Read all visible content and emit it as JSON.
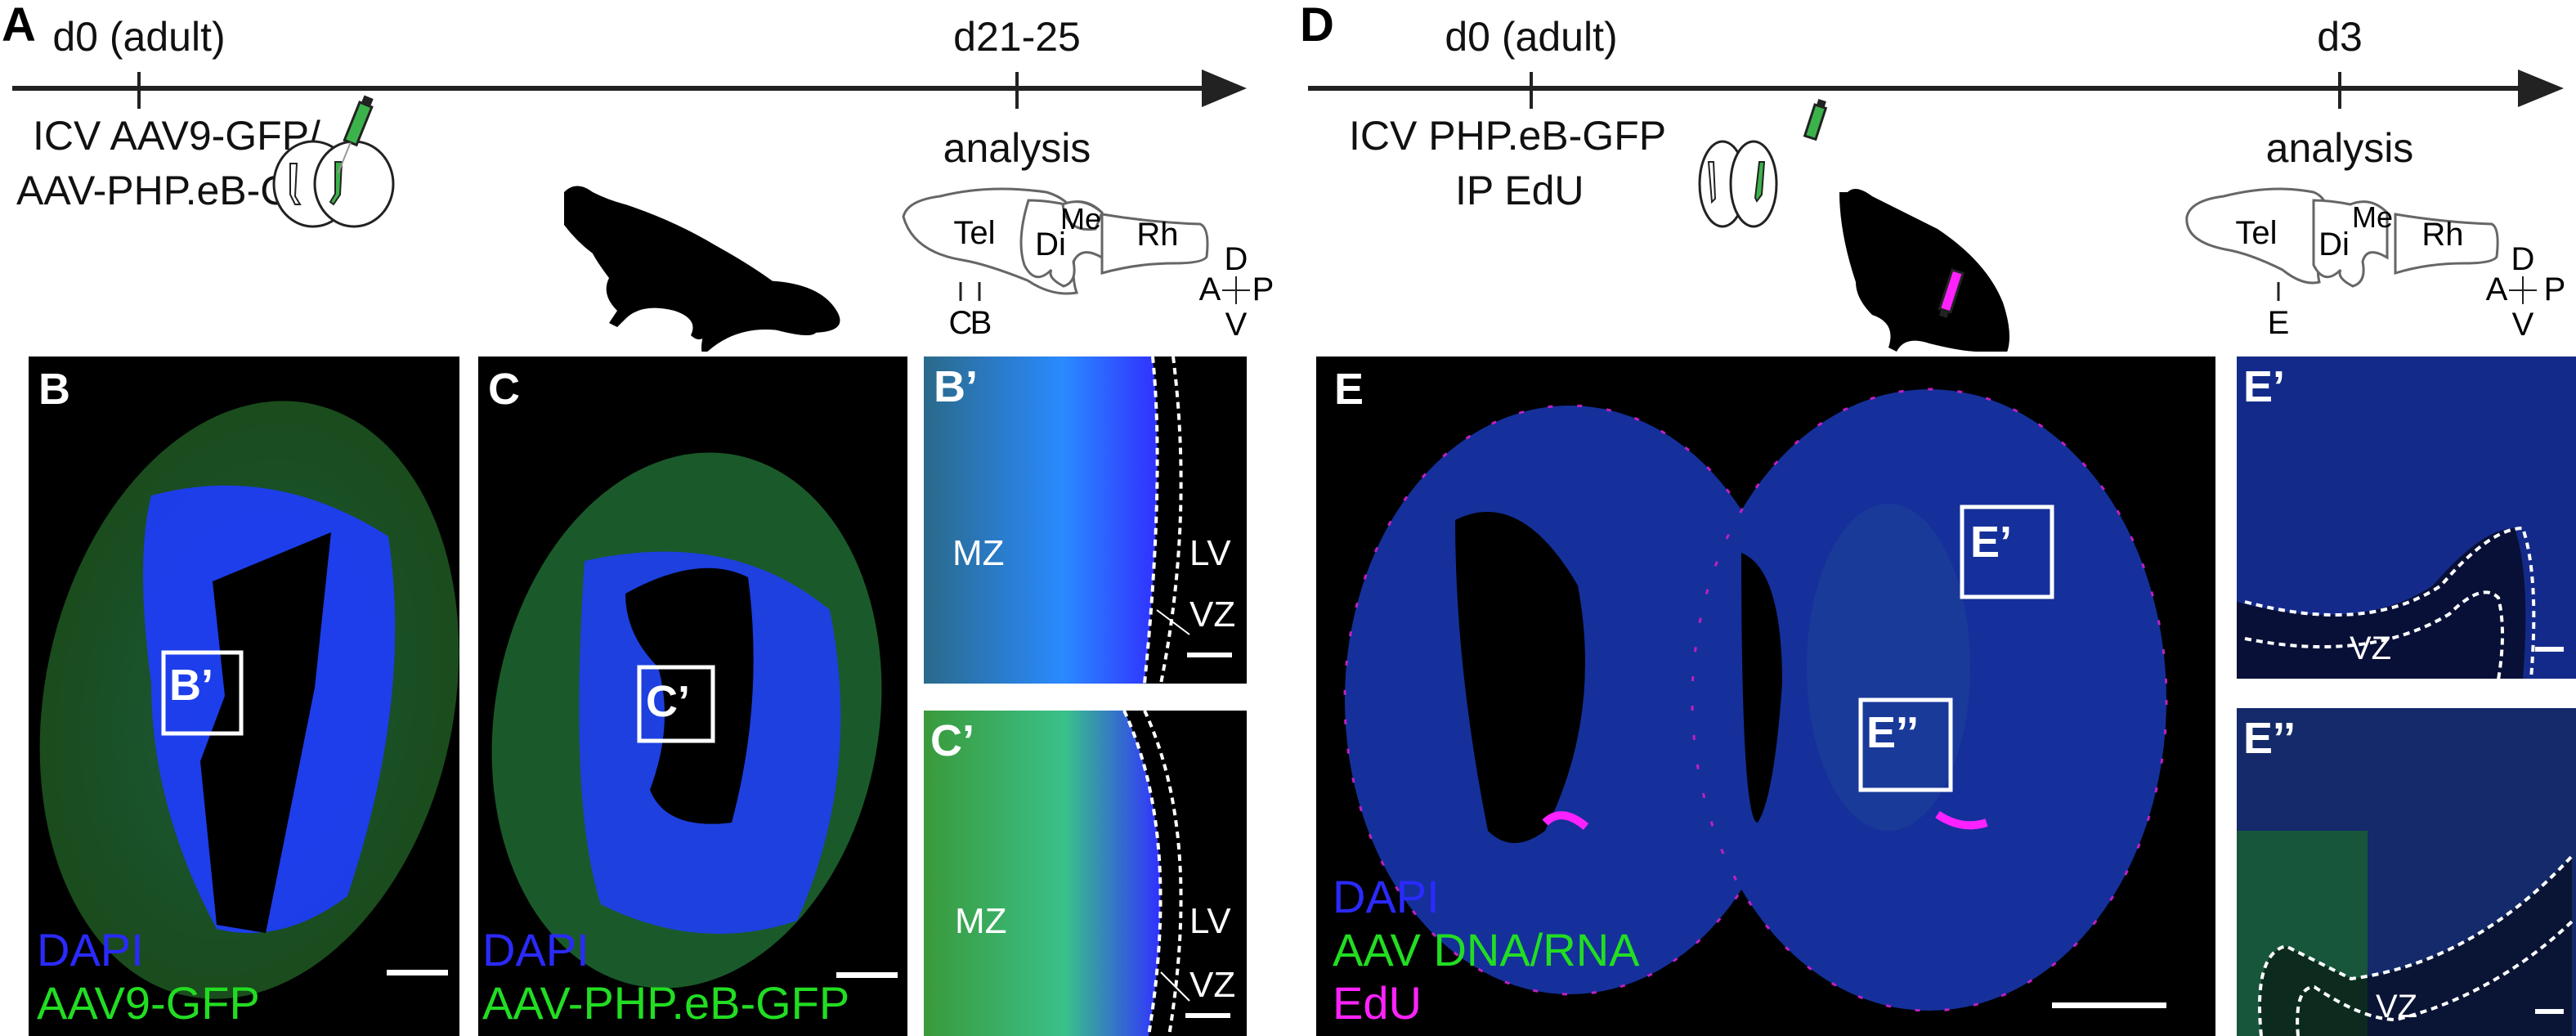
{
  "panel_a": {
    "label": "A",
    "timepoint_start": "d0 (adult)",
    "timepoint_end": "d21-25",
    "treatment_line1": "ICV AAV9-GFP/",
    "treatment_line2": "AAV-PHP.eB-GFP",
    "end_event": "analysis",
    "brain_regions": [
      "Tel",
      "Di",
      "Me",
      "Rh"
    ],
    "section_marks": [
      "C",
      "B"
    ],
    "compass": {
      "dorsal": "D",
      "anterior": "A",
      "posterior": "P",
      "ventral": "V"
    }
  },
  "panel_d": {
    "label": "D",
    "timepoint_start": "d0 (adult)",
    "timepoint_end": "d3",
    "treatment_line1": "ICV PHP.eB-GFP",
    "treatment_line2": "IP EdU",
    "end_event": "analysis",
    "brain_regions": [
      "Tel",
      "Di",
      "Me",
      "Rh"
    ],
    "section_marks": [
      "E"
    ],
    "compass": {
      "dorsal": "D",
      "anterior": "A",
      "posterior": "P",
      "ventral": "V"
    }
  },
  "panel_b": {
    "label": "B",
    "box_label": "B’",
    "legend": [
      "DAPI",
      "AAV9-GFP"
    ]
  },
  "panel_c": {
    "label": "C",
    "box_label": "C’",
    "legend": [
      "DAPI",
      "AAV-PHP.eB-GFP"
    ]
  },
  "panel_b_prime": {
    "label": "B’",
    "zones": [
      "MZ",
      "LV",
      "VZ"
    ]
  },
  "panel_c_prime": {
    "label": "C’",
    "zones": [
      "MZ",
      "LV",
      "VZ"
    ]
  },
  "panel_e": {
    "label": "E",
    "box_labels": [
      "E’",
      "E’’"
    ],
    "legend": [
      "DAPI",
      "AAV DNA/RNA",
      "EdU"
    ]
  },
  "panel_e_prime": {
    "label": "E’",
    "zones": [
      "VZ"
    ]
  },
  "panel_e_dprime": {
    "label": "E’’",
    "zones": [
      "VZ"
    ]
  },
  "colors": {
    "dapi": "#2a2aff",
    "gfp": "#22dd22",
    "edu": "#ff22ff"
  }
}
